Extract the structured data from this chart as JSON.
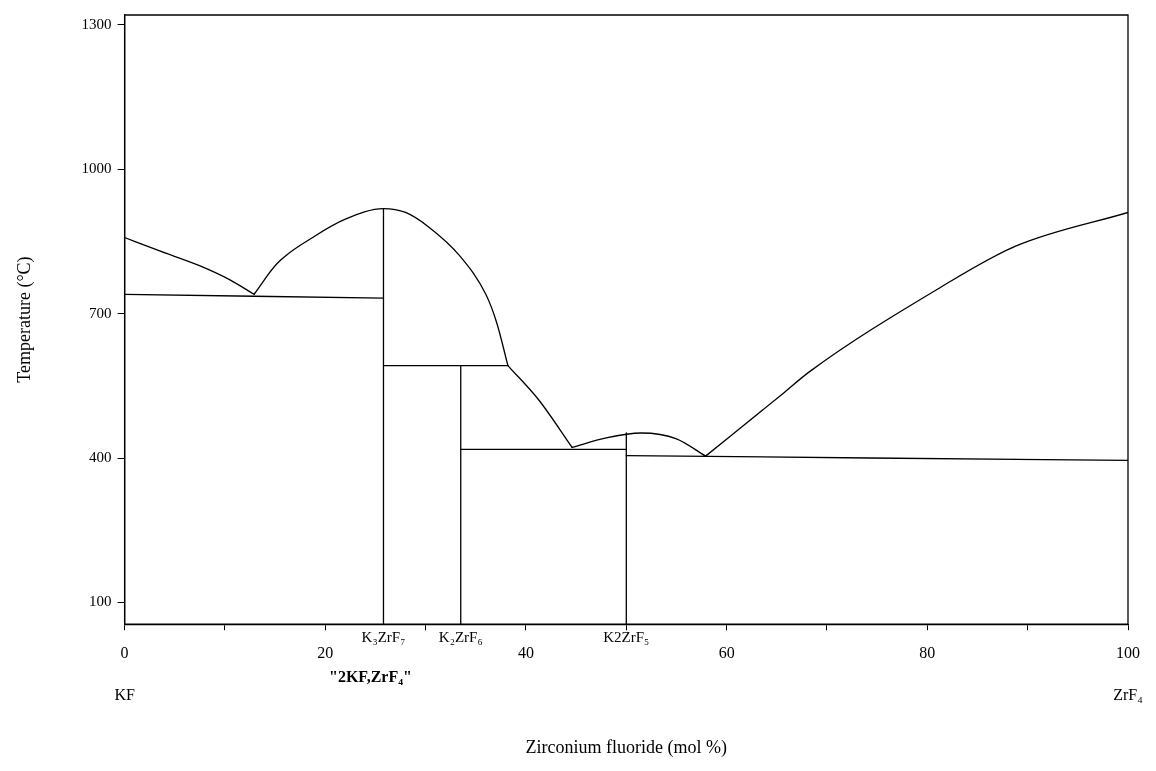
{
  "chart_data": {
    "type": "line",
    "xlabel": "Zirconium fluoride (mol %)",
    "ylabel": "Temperature (°C)",
    "xlim": [
      0,
      100
    ],
    "ylim": [
      55,
      1320
    ],
    "xticks": [
      0,
      {
        "value": 10,
        "label": null
      },
      20,
      {
        "value": 30,
        "label": null
      },
      40,
      {
        "value": 50,
        "label": null
      },
      60,
      {
        "value": 70,
        "label": null
      },
      80,
      {
        "value": 90,
        "label": null
      },
      100
    ],
    "yticks": [
      100,
      400,
      700,
      1000,
      1300
    ],
    "grid": false,
    "legend": false,
    "marker": "none",
    "line_style": "solid",
    "series": [
      {
        "color": "#000000",
        "x": [
          0,
          3.5,
          7.4,
          10.5,
          12.9
        ],
        "values": [
          858,
          830,
          800,
          770,
          740
        ]
      },
      {
        "color": "#000000",
        "x": [
          12.9,
          15.2,
          18.9,
          22,
          25.8,
          28,
          30.3,
          33.4,
          36,
          37.1,
          38.2
        ],
        "values": [
          740,
          804,
          860,
          896,
          918,
          910,
          880,
          820,
          740,
          680,
          592
        ]
      },
      {
        "color": "#000000",
        "x": [
          38.2,
          41.3,
          44.6
        ],
        "values": [
          592,
          520,
          422
        ]
      },
      {
        "color": "#000000",
        "x": [
          44.6,
          48,
          51.5,
          55,
          57.9
        ],
        "values": [
          422,
          442,
          452,
          440,
          404
        ]
      },
      {
        "color": "#000000",
        "x": [
          57.9,
          65.5,
          68.3,
          80.8,
          88.8,
          100
        ],
        "values": [
          404,
          532,
          580,
          748,
          840,
          910
        ]
      },
      {
        "color": "#000000",
        "x": [
          0,
          25.8
        ],
        "values": [
          740,
          732
        ]
      },
      {
        "color": "#000000",
        "x": [
          25.8,
          38.2
        ],
        "values": [
          592,
          592
        ]
      },
      {
        "color": "#000000",
        "x": [
          33.5,
          50
        ],
        "values": [
          418,
          418
        ]
      },
      {
        "color": "#000000",
        "x": [
          50,
          100
        ],
        "values": [
          405,
          395
        ]
      },
      {
        "color": "#000000",
        "x": [
          25.8,
          25.8
        ],
        "values": [
          918,
          55
        ]
      },
      {
        "color": "#000000",
        "x": [
          33.5,
          33.5
        ],
        "values": [
          592,
          55
        ]
      },
      {
        "color": "#000000",
        "x": [
          50,
          50
        ],
        "values": [
          452,
          55
        ]
      }
    ],
    "annotations": [
      {
        "text": "K₃ZrF₇",
        "x": 25.8,
        "y": 55
      },
      {
        "text": "K₂ZrF₆",
        "x": 33.5,
        "y": 55
      },
      {
        "text": "K2ZrF₅",
        "x": 50,
        "y": 55
      },
      "\"2KF,ZrF₄\"",
      "KF",
      "ZrF₄"
    ]
  }
}
